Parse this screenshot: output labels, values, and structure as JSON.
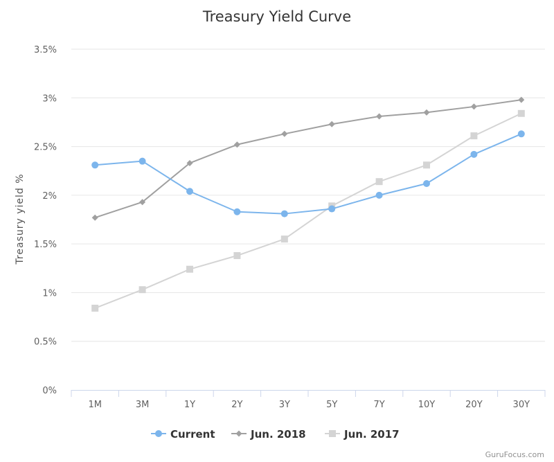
{
  "chart_data": {
    "type": "line",
    "title": "Treasury Yield Curve",
    "xlabel": "",
    "ylabel": "Treasury yield %",
    "categories": [
      "1M",
      "3M",
      "1Y",
      "2Y",
      "3Y",
      "5Y",
      "7Y",
      "10Y",
      "20Y",
      "30Y"
    ],
    "ylim": [
      0,
      3.5
    ],
    "yticks": [
      "0%",
      "0.5%",
      "1%",
      "1.5%",
      "2%",
      "2.5%",
      "3%",
      "3.5%"
    ],
    "grid": true,
    "legend_position": "bottom-center",
    "series": [
      {
        "name": "Current",
        "color": "#7cb5ec",
        "marker": "circle",
        "values": [
          2.31,
          2.35,
          2.04,
          1.83,
          1.81,
          1.86,
          2.0,
          2.12,
          2.42,
          2.63
        ]
      },
      {
        "name": "Jun. 2018",
        "color": "#a0a0a0",
        "marker": "diamond",
        "values": [
          1.77,
          1.93,
          2.33,
          2.52,
          2.63,
          2.73,
          2.81,
          2.85,
          2.91,
          2.98
        ]
      },
      {
        "name": "Jun. 2017",
        "color": "#d4d4d4",
        "marker": "square",
        "values": [
          0.84,
          1.03,
          1.24,
          1.38,
          1.55,
          1.89,
          2.14,
          2.31,
          2.61,
          2.84
        ]
      }
    ],
    "credit": "GuruFocus.com"
  }
}
